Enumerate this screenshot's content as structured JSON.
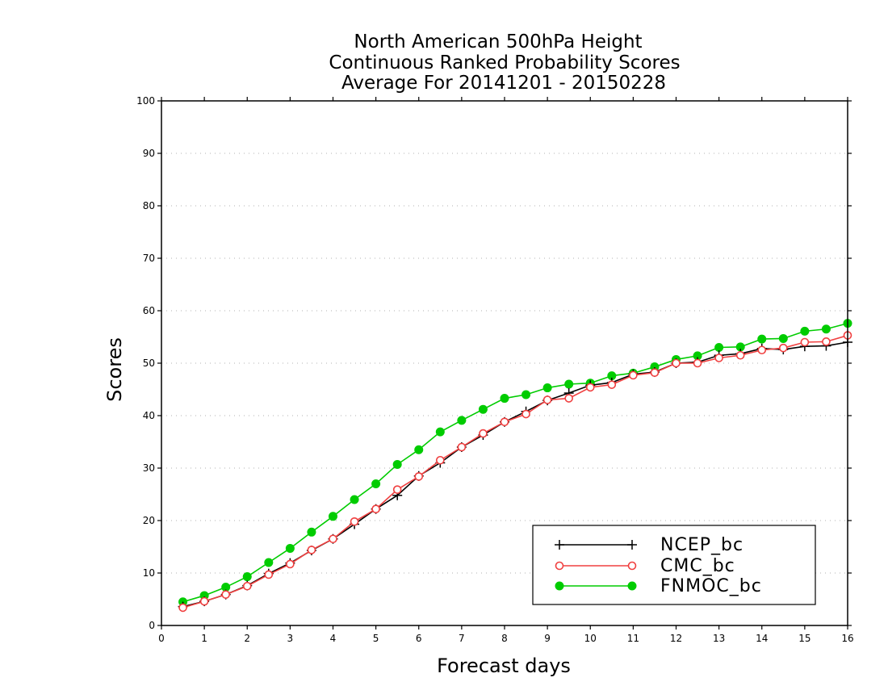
{
  "chart_data": {
    "type": "line",
    "title": [
      "North American 500hPa Height",
      "Continuous Ranked Probability Scores",
      "Average For 20141201 - 20150228"
    ],
    "xlabel": "Forecast days",
    "ylabel": "Scores",
    "xlim": [
      0,
      16
    ],
    "ylim": [
      0,
      100
    ],
    "xticks": [
      0,
      1,
      2,
      3,
      4,
      5,
      6,
      7,
      8,
      9,
      10,
      11,
      12,
      13,
      14,
      15,
      16
    ],
    "yticks": [
      0,
      10,
      20,
      30,
      40,
      50,
      60,
      70,
      80,
      90,
      100
    ],
    "grid": true,
    "legend_position": "bottom-right",
    "x": [
      0.5,
      1,
      1.5,
      2,
      2.5,
      3,
      3.5,
      4,
      4.5,
      5,
      5.5,
      6,
      6.5,
      7,
      7.5,
      8,
      8.5,
      9,
      9.5,
      10,
      10.5,
      11,
      11.5,
      12,
      12.5,
      13,
      13.5,
      14,
      14.5,
      15,
      15.5,
      16
    ],
    "series": [
      {
        "name": "NCEP_bc",
        "color": "#000000",
        "marker": "plus",
        "values": [
          3.6,
          4.6,
          5.9,
          7.6,
          9.9,
          11.9,
          14.3,
          16.5,
          19.3,
          22.2,
          24.8,
          28.5,
          31.0,
          34.0,
          36.3,
          38.8,
          40.8,
          42.9,
          44.3,
          45.8,
          46.3,
          47.9,
          48.3,
          50.0,
          50.2,
          51.5,
          51.8,
          52.8,
          52.6,
          53.2,
          53.3,
          54.0
        ]
      },
      {
        "name": "CMC_bc",
        "color": "#f04040",
        "marker": "open-circle",
        "values": [
          3.4,
          4.6,
          5.9,
          7.5,
          9.7,
          11.7,
          14.4,
          16.5,
          19.8,
          22.2,
          25.9,
          28.4,
          31.5,
          34.0,
          36.6,
          38.8,
          40.3,
          43.0,
          43.3,
          45.4,
          45.9,
          47.7,
          48.2,
          50.0,
          50.0,
          51.0,
          51.5,
          52.5,
          52.9,
          54.0,
          54.1,
          55.3
        ]
      },
      {
        "name": "FNMOC_bc",
        "color": "#00cc00",
        "marker": "filled-circle",
        "values": [
          4.5,
          5.7,
          7.3,
          9.3,
          12.0,
          14.7,
          17.8,
          20.8,
          24.0,
          27.0,
          30.7,
          33.5,
          36.9,
          39.1,
          41.2,
          43.3,
          44.0,
          45.3,
          46.0,
          46.2,
          47.6,
          48.1,
          49.3,
          50.7,
          51.4,
          53.0,
          53.1,
          54.6,
          54.7,
          56.1,
          56.5,
          57.6
        ]
      }
    ]
  }
}
